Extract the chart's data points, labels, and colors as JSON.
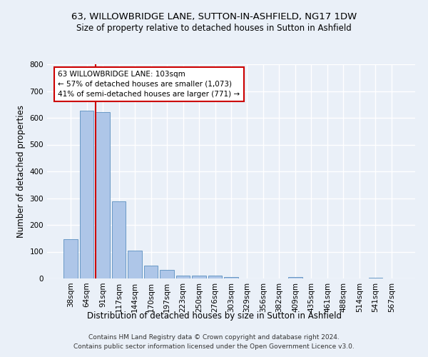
{
  "title1": "63, WILLOWBRIDGE LANE, SUTTON-IN-ASHFIELD, NG17 1DW",
  "title2": "Size of property relative to detached houses in Sutton in Ashfield",
  "xlabel": "Distribution of detached houses by size in Sutton in Ashfield",
  "ylabel": "Number of detached properties",
  "footer1": "Contains HM Land Registry data © Crown copyright and database right 2024.",
  "footer2": "Contains public sector information licensed under the Open Government Licence v3.0.",
  "categories": [
    "38sqm",
    "64sqm",
    "91sqm",
    "117sqm",
    "144sqm",
    "170sqm",
    "197sqm",
    "223sqm",
    "250sqm",
    "276sqm",
    "303sqm",
    "329sqm",
    "356sqm",
    "382sqm",
    "409sqm",
    "435sqm",
    "461sqm",
    "488sqm",
    "514sqm",
    "541sqm",
    "567sqm"
  ],
  "values": [
    148,
    628,
    622,
    289,
    103,
    47,
    31,
    12,
    10,
    10,
    6,
    1,
    0,
    0,
    5,
    0,
    0,
    0,
    0,
    4,
    0
  ],
  "bar_color": "#aec6e8",
  "bar_edge_color": "#5a8fc0",
  "bg_color": "#eaf0f8",
  "grid_color": "#ffffff",
  "vline_x_index": 2,
  "vline_color": "#cc0000",
  "annotation_line1": "63 WILLOWBRIDGE LANE: 103sqm",
  "annotation_line2": "← 57% of detached houses are smaller (1,073)",
  "annotation_line3": "41% of semi-detached houses are larger (771) →",
  "annotation_box_color": "#ffffff",
  "annotation_box_edge": "#cc0000",
  "ylim": [
    0,
    800
  ],
  "yticks": [
    0,
    100,
    200,
    300,
    400,
    500,
    600,
    700,
    800
  ]
}
